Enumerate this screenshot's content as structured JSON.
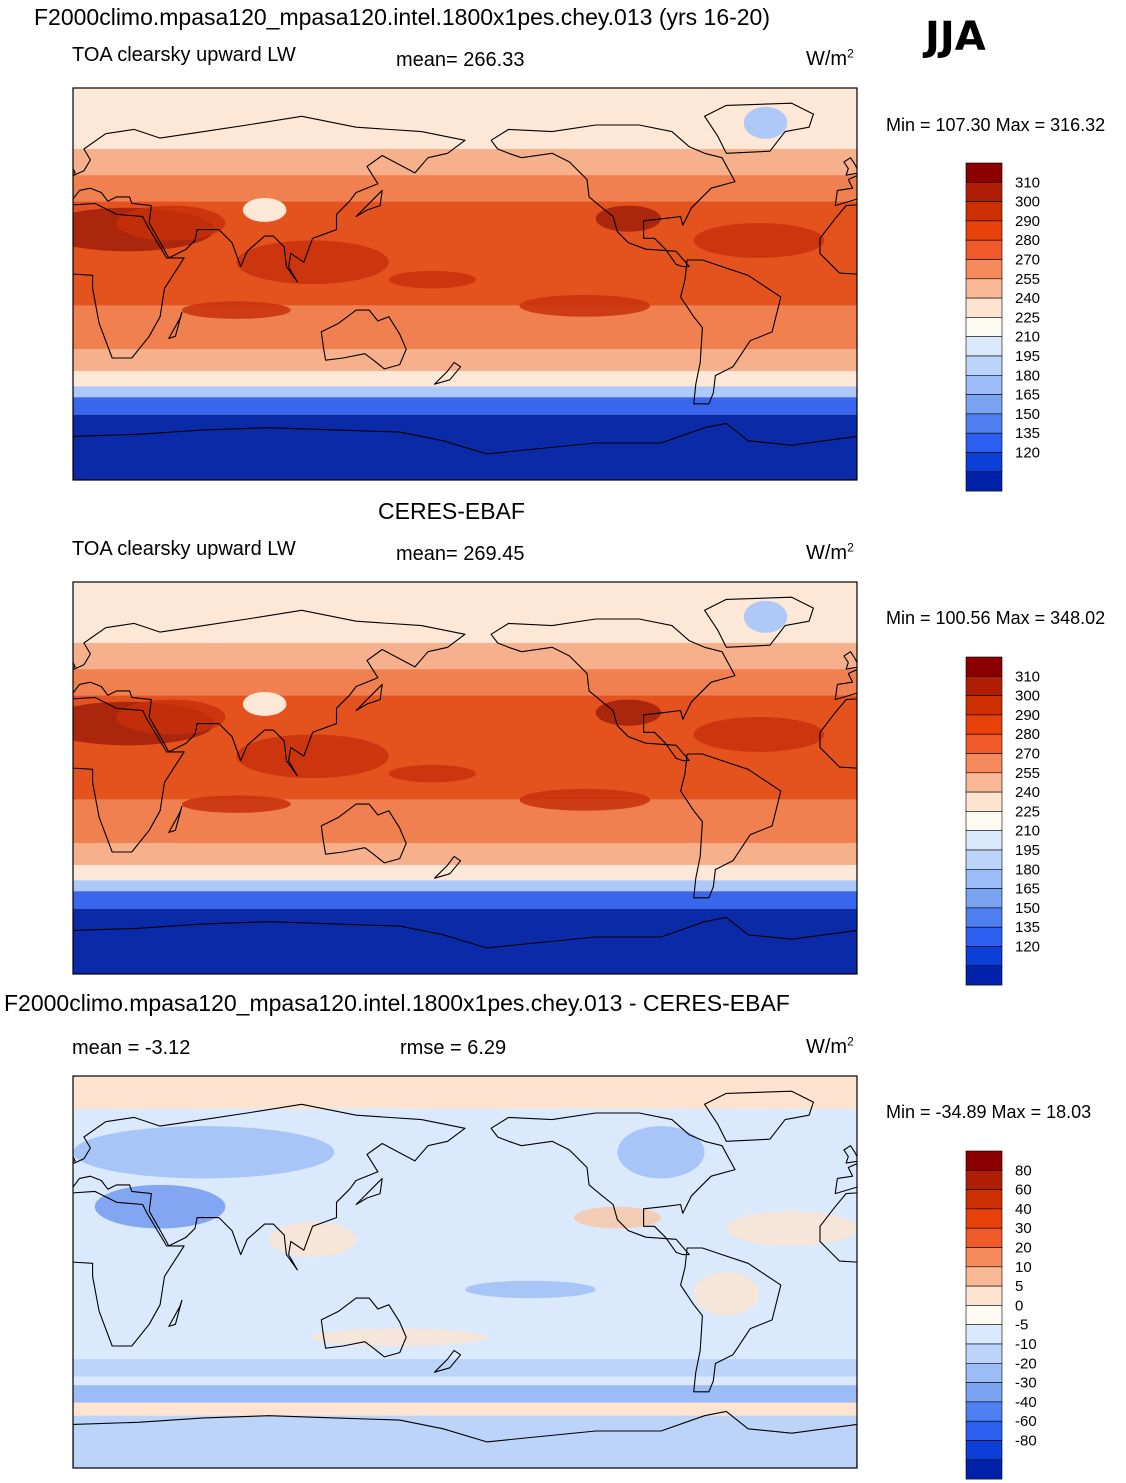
{
  "main_title": "F2000climo.mpasa120_mpasa120.intel.1800x1pes.chey.013 (yrs 16-20)",
  "season": "JJA",
  "panels": [
    {
      "id": "model",
      "heading": "",
      "left": "TOA clearsky upward LW",
      "center": "mean= 266.33",
      "unit_base": "W/m",
      "unit_exp": "2",
      "minmax": "Min = 107.30 Max = 316.32"
    },
    {
      "id": "obs",
      "heading": "CERES-EBAF",
      "left": "TOA clearsky upward LW",
      "center": "mean= 269.45",
      "unit_base": "W/m",
      "unit_exp": "2",
      "minmax": "Min = 100.56 Max = 348.02"
    },
    {
      "id": "diff",
      "heading": "F2000climo.mpasa120_mpasa120.intel.1800x1pes.chey.013 - CERES-EBAF",
      "left": "mean =  -3.12",
      "center": "rmse =   6.29",
      "unit_base": "W/m",
      "unit_exp": "2",
      "minmax": "Min = -34.89 Max =  18.03"
    }
  ],
  "colorbars": {
    "abs": {
      "labels": [
        "310",
        "300",
        "290",
        "280",
        "270",
        "255",
        "240",
        "225",
        "210",
        "195",
        "180",
        "165",
        "150",
        "135",
        "120"
      ],
      "colors": [
        "#8b0000",
        "#b01e05",
        "#cc3000",
        "#e8420a",
        "#f05a28",
        "#f58a5c",
        "#f9b896",
        "#fde3d0",
        "#fdfaf2",
        "#dbe9fc",
        "#bcd3fa",
        "#9bbcf6",
        "#7aa3f2",
        "#4f7ff0",
        "#2a5ff0",
        "#0c3fd8",
        "#0022aa"
      ]
    },
    "diff": {
      "labels": [
        "80",
        "60",
        "40",
        "30",
        "20",
        "10",
        "5",
        "0",
        "-5",
        "-10",
        "-20",
        "-30",
        "-40",
        "-60",
        "-80"
      ],
      "colors": [
        "#8b0000",
        "#b01e05",
        "#cc3000",
        "#e8420a",
        "#f05a28",
        "#f58a5c",
        "#f9b896",
        "#fde3d0",
        "#fdfaf2",
        "#dbe9fc",
        "#bcd3fa",
        "#9bbcf6",
        "#7aa3f2",
        "#4f7ff0",
        "#2a5ff0",
        "#0c3fd8",
        "#0022aa"
      ]
    }
  },
  "map_palettes": {
    "abs": {
      "land_outline": "#000000",
      "polar_deep": "#0a2aa8",
      "polar_mid": "#3a66ee",
      "polar_light": "#aec8f8",
      "subpolar": "#fde7d6",
      "midlat": "#f7b08c",
      "subtropic": "#f08050",
      "tropic": "#e4521e",
      "hot": "#c8300a",
      "desert": "#a01e0a"
    },
    "diff": {
      "land_outline": "#000000",
      "base": "#dbe9fc",
      "neg_light": "#bcd3fa",
      "neg_mid": "#9bbcf6",
      "neg_strong": "#6b95ee",
      "pos_light": "#fde3d0",
      "pos_mid": "#f9c4a4"
    }
  }
}
